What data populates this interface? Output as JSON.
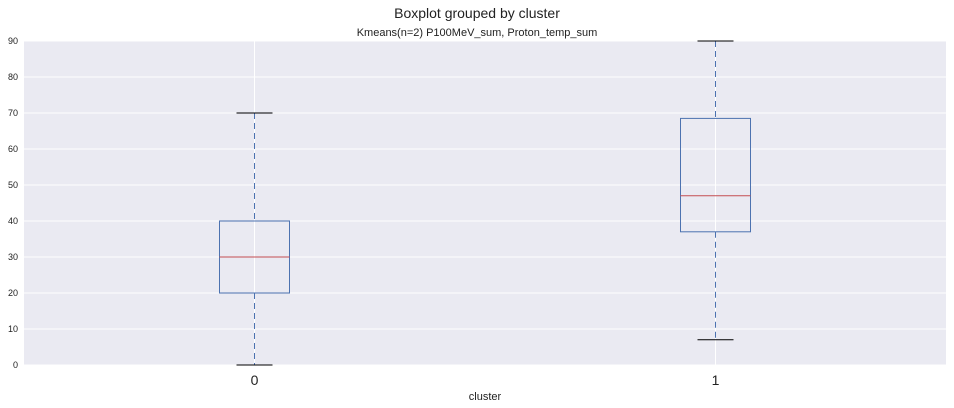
{
  "chart_data": {
    "type": "boxplot",
    "suptitle": "Boxplot grouped by cluster",
    "title": "Kmeans(n=2) P100MeV_sum, Proton_temp_sum",
    "xlabel": "cluster",
    "ylabel": "",
    "categories": [
      "0",
      "1"
    ],
    "ylim": [
      0,
      90
    ],
    "yticks": [
      0,
      10,
      20,
      30,
      40,
      50,
      60,
      70,
      80,
      90
    ],
    "grid": true,
    "boxes": [
      {
        "category": "0",
        "whisker_low": 0,
        "q1": 20,
        "median": 30,
        "q3": 40,
        "whisker_high": 70
      },
      {
        "category": "1",
        "whisker_low": 7,
        "q1": 37,
        "median": 47,
        "q3": 68.5,
        "whisker_high": 90
      }
    ],
    "colors": {
      "background": "#eaeaf2",
      "grid": "#ffffff",
      "box": "#4c72b0",
      "median": "#c44e52",
      "cap": "#000000"
    }
  }
}
